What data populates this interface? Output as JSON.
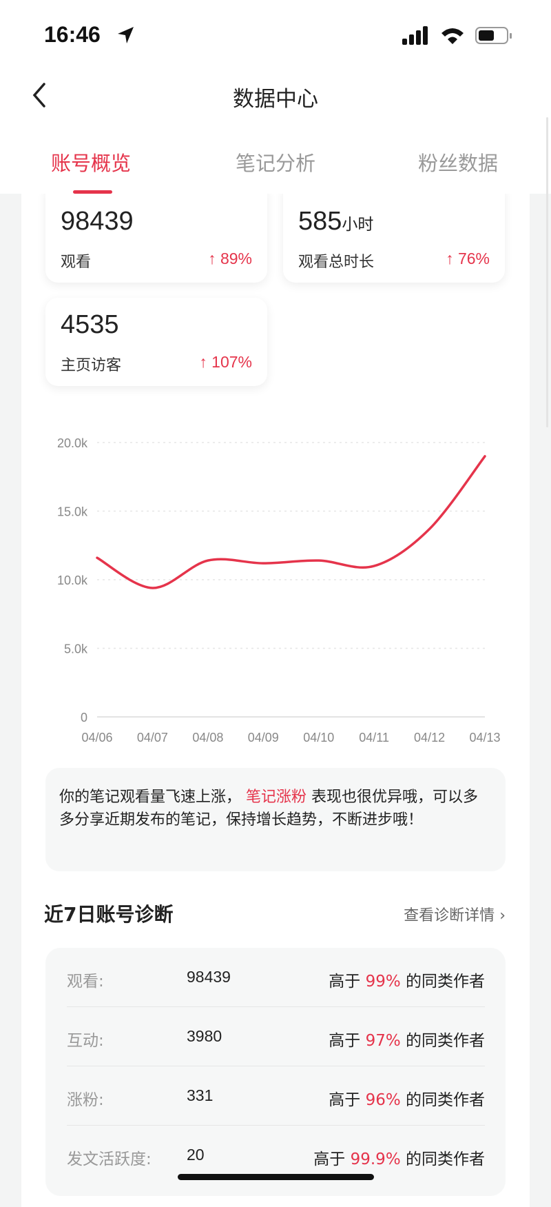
{
  "status_bar": {
    "time": "16:46"
  },
  "nav": {
    "title": "数据中心"
  },
  "tabs": [
    {
      "label": "账号概览",
      "active": true
    },
    {
      "label": "笔记分析"
    },
    {
      "label": "粉丝数据"
    }
  ],
  "cards": [
    {
      "value": "98439",
      "unit": "",
      "label": "观看",
      "change": "↑ 89%"
    },
    {
      "value": "585",
      "unit": "小时",
      "label": "观看总时长",
      "change": "↑ 76%"
    },
    {
      "value": "4535",
      "unit": "",
      "label": "主页访客",
      "change": "↑ 107%"
    }
  ],
  "chart_data": {
    "type": "line",
    "x": [
      "04/06",
      "04/07",
      "04/08",
      "04/09",
      "04/10",
      "04/11",
      "04/12",
      "04/13"
    ],
    "values": [
      11600,
      9400,
      11400,
      11200,
      11400,
      11000,
      13700,
      19000
    ],
    "yticks": [
      "0",
      "5.0k",
      "10.0k",
      "15.0k",
      "20.0k"
    ],
    "ylim": [
      0,
      20000
    ],
    "grid": true,
    "color": "#e5344b"
  },
  "tip": {
    "part1": "你的笔记观看量飞速上涨， ",
    "highlight": "笔记涨粉",
    "part2": " 表现也很优异哦，可以多多分享近期发布的笔记，保持增长趋势，不断进步哦！"
  },
  "diagnosis": {
    "title": "近7日账号诊断",
    "link": "查看诊断详情",
    "rows": [
      {
        "label": "观看:",
        "value": "98439",
        "prefix": "高于 ",
        "percent": "99%",
        "suffix": " 的同类作者"
      },
      {
        "label": "互动:",
        "value": "3980",
        "prefix": "高于 ",
        "percent": "97%",
        "suffix": " 的同类作者"
      },
      {
        "label": "涨粉:",
        "value": "331",
        "prefix": "高于 ",
        "percent": "96%",
        "suffix": " 的同类作者"
      },
      {
        "label": "发文活跃度:",
        "value": "20",
        "prefix": "高于 ",
        "percent": "99.9%",
        "suffix": " 的同类作者"
      }
    ]
  }
}
